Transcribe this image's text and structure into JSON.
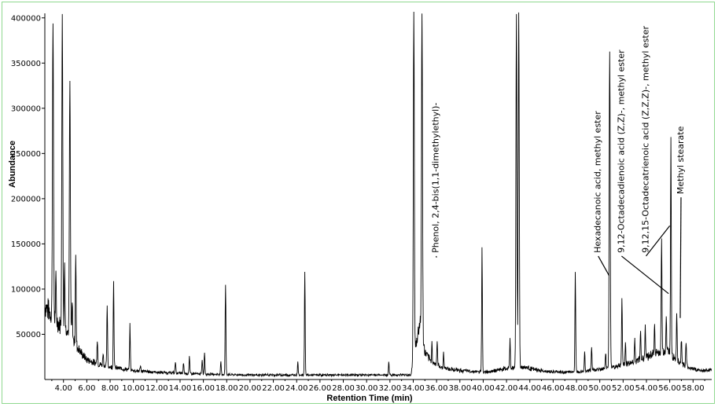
{
  "chart_data": {
    "type": "line",
    "title": "",
    "xlabel": "Retention Time (min)",
    "ylabel": "Abundance",
    "xlim": [
      2.4,
      59.6
    ],
    "ylim": [
      0,
      405000
    ],
    "grid": false,
    "x_ticks": [
      "4.00",
      "6.00",
      "8.00",
      "10.00",
      "12.00",
      "14.00",
      "16.00",
      "18.00",
      "20.00",
      "22.00",
      "24.00",
      "26.00",
      "28.00",
      "30.00",
      "32.00",
      "34.00",
      "36.00",
      "38.00",
      "40.00",
      "42.00",
      "44.00",
      "46.00",
      "48.00",
      "50.00",
      "52.00",
      "54.00",
      "56.00",
      "58.00"
    ],
    "y_ticks": [
      "50000",
      "100000",
      "150000",
      "200000",
      "250000",
      "300000",
      "350000",
      "400000"
    ],
    "baseline": [
      [
        2.4,
        82000
      ],
      [
        2.8,
        75000
      ],
      [
        3.2,
        68000
      ],
      [
        3.6,
        62000
      ],
      [
        4.0,
        58000
      ],
      [
        4.4,
        52000
      ],
      [
        5.0,
        40000
      ],
      [
        5.6,
        28000
      ],
      [
        6.0,
        22000
      ],
      [
        7.0,
        17000
      ],
      [
        8.0,
        14000
      ],
      [
        9.0,
        12000
      ],
      [
        10.0,
        10000
      ],
      [
        12.0,
        8000
      ],
      [
        14.0,
        7000
      ],
      [
        16.0,
        6000
      ],
      [
        18.0,
        5500
      ],
      [
        20.0,
        5000
      ],
      [
        24.0,
        5000
      ],
      [
        28.0,
        5000
      ],
      [
        32.0,
        5000
      ],
      [
        33.8,
        5200
      ],
      [
        34.6,
        65000
      ],
      [
        35.0,
        30000
      ],
      [
        35.5,
        20000
      ],
      [
        36.5,
        13000
      ],
      [
        38.0,
        10000
      ],
      [
        40.0,
        8000
      ],
      [
        42.0,
        12000
      ],
      [
        43.5,
        14000
      ],
      [
        45.0,
        9000
      ],
      [
        47.0,
        8000
      ],
      [
        49.0,
        10000
      ],
      [
        50.5,
        12000
      ],
      [
        52.5,
        18000
      ],
      [
        53.5,
        22000
      ],
      [
        54.5,
        28000
      ],
      [
        55.8,
        32000
      ],
      [
        56.5,
        22000
      ],
      [
        57.5,
        14000
      ],
      [
        58.5,
        10000
      ],
      [
        59.6,
        10000
      ]
    ],
    "peaks": [
      {
        "x": 3.1,
        "y": 405000
      },
      {
        "x": 3.35,
        "y": 110000
      },
      {
        "x": 3.9,
        "y": 405000
      },
      {
        "x": 4.1,
        "y": 130000
      },
      {
        "x": 4.3,
        "y": 60000
      },
      {
        "x": 4.55,
        "y": 330000
      },
      {
        "x": 4.75,
        "y": 85000
      },
      {
        "x": 5.05,
        "y": 140000
      },
      {
        "x": 5.6,
        "y": 25000
      },
      {
        "x": 6.9,
        "y": 45000
      },
      {
        "x": 7.4,
        "y": 30000
      },
      {
        "x": 7.75,
        "y": 80000
      },
      {
        "x": 8.3,
        "y": 110000
      },
      {
        "x": 9.7,
        "y": 60000
      },
      {
        "x": 10.6,
        "y": 15000
      },
      {
        "x": 13.6,
        "y": 20000
      },
      {
        "x": 14.3,
        "y": 18000
      },
      {
        "x": 14.8,
        "y": 25000
      },
      {
        "x": 15.9,
        "y": 22000
      },
      {
        "x": 16.1,
        "y": 30000
      },
      {
        "x": 17.5,
        "y": 20000
      },
      {
        "x": 17.9,
        "y": 105000
      },
      {
        "x": 24.1,
        "y": 20000
      },
      {
        "x": 24.7,
        "y": 118000
      },
      {
        "x": 31.9,
        "y": 20000
      },
      {
        "x": 34.05,
        "y": 405000
      },
      {
        "x": 34.75,
        "y": 405000
      },
      {
        "x": 35.6,
        "y": 40000
      },
      {
        "x": 36.05,
        "y": 42000
      },
      {
        "x": 36.6,
        "y": 30000
      },
      {
        "x": 39.9,
        "y": 145000
      },
      {
        "x": 42.3,
        "y": 45000
      },
      {
        "x": 42.85,
        "y": 405000
      },
      {
        "x": 43.05,
        "y": 405000
      },
      {
        "x": 45.0,
        "y": 12000
      },
      {
        "x": 47.9,
        "y": 118000
      },
      {
        "x": 48.7,
        "y": 30000
      },
      {
        "x": 49.3,
        "y": 35000
      },
      {
        "x": 50.5,
        "y": 30000
      },
      {
        "x": 50.85,
        "y": 365000
      },
      {
        "x": 51.9,
        "y": 90000
      },
      {
        "x": 52.2,
        "y": 40000
      },
      {
        "x": 53.0,
        "y": 45000
      },
      {
        "x": 53.5,
        "y": 55000
      },
      {
        "x": 53.9,
        "y": 60000
      },
      {
        "x": 54.7,
        "y": 60000
      },
      {
        "x": 55.3,
        "y": 160000
      },
      {
        "x": 55.7,
        "y": 70000
      },
      {
        "x": 56.1,
        "y": 265000
      },
      {
        "x": 56.6,
        "y": 75000
      },
      {
        "x": 57.0,
        "y": 45000
      },
      {
        "x": 57.4,
        "y": 40000
      }
    ],
    "annotations": [
      {
        "text": "Phenol, 2,4-bis(1,1-dimethylethyl)-",
        "x": 36.0,
        "y": 40000,
        "text_x": 35.9,
        "text_y": 140000,
        "leader_to_x": 36.0,
        "leader_to_y": 135000
      },
      {
        "text": "Hexadecanoic acid, methyl ester",
        "x": 50.8,
        "y": 115000,
        "text_x": 49.8,
        "text_y": 140000,
        "leader_to_x": 50.8,
        "leader_to_y": 115000
      },
      {
        "text": "9,12-Octadecadienoic acid (Z,Z)-, methyl ester",
        "x": 55.9,
        "y": 95000,
        "text_x": 51.8,
        "text_y": 140000,
        "leader_to_x": 55.9,
        "leader_to_y": 95000
      },
      {
        "text": "9,12,15-Octadecatrienoic acid (Z,Z,Z)-, methyl ester",
        "x": 56.0,
        "y": 170000,
        "text_x": 53.9,
        "text_y": 140000,
        "leader_to_x": 56.0,
        "leader_to_y": 170000
      },
      {
        "text": "Methyl stearate",
        "x": 56.9,
        "y": 68000,
        "text_x": 56.9,
        "text_y": 205000,
        "leader_to_x": 56.9,
        "leader_to_y": 68000
      }
    ]
  }
}
